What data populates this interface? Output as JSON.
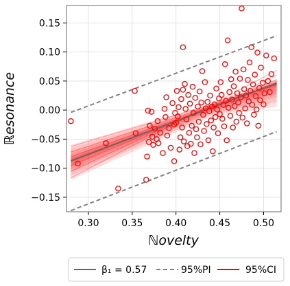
{
  "chart_data": {
    "type": "scatter",
    "xlabel": "ℕovelty",
    "ylabel": "ℝesonance",
    "xlim": [
      0.275,
      0.52
    ],
    "ylim": [
      -0.175,
      0.18
    ],
    "xticks": [
      0.3,
      0.35,
      0.4,
      0.45,
      0.5
    ],
    "xtick_labels": [
      "0.30",
      "0.35",
      "0.40",
      "0.45",
      "0.50"
    ],
    "yticks": [
      -0.15,
      -0.1,
      -0.05,
      0.0,
      0.05,
      0.1,
      0.15
    ],
    "ytick_labels": [
      "−0.15",
      "−0.10",
      "−0.05",
      "0.00",
      "0.05",
      "0.10",
      "0.15"
    ],
    "grid": true,
    "legend_position": "bottom-outside",
    "colors": {
      "points": "#ff0000",
      "fit": "#666666",
      "ci": "#ff0000",
      "pi": "#808080"
    },
    "regression": {
      "label": "β₁ = 0.57",
      "slope": 0.57,
      "intercept": -0.247,
      "x_range": [
        0.28,
        0.515
      ]
    },
    "prediction_interval": {
      "label": "95%PI",
      "upper": [
        [
          0.28,
          -0.004
        ],
        [
          0.515,
          0.128
        ]
      ],
      "lower": [
        [
          0.28,
          -0.173
        ],
        [
          0.515,
          -0.037
        ]
      ]
    },
    "confidence_interval": {
      "label": "95%CI",
      "upper": [
        [
          0.28,
          -0.06
        ],
        [
          0.44,
          0.011
        ],
        [
          0.515,
          0.053
        ]
      ],
      "lower": [
        [
          0.28,
          -0.12
        ],
        [
          0.44,
          -0.011
        ],
        [
          0.515,
          0.006
        ]
      ]
    },
    "points": [
      {
        "x": 0.28,
        "y": -0.019
      },
      {
        "x": 0.288,
        "y": -0.092
      },
      {
        "x": 0.32,
        "y": -0.057
      },
      {
        "x": 0.334,
        "y": -0.135
      },
      {
        "x": 0.353,
        "y": 0.033
      },
      {
        "x": 0.354,
        "y": -0.04
      },
      {
        "x": 0.366,
        "y": -0.12
      },
      {
        "x": 0.367,
        "y": -0.08
      },
      {
        "x": 0.368,
        "y": -0.001
      },
      {
        "x": 0.369,
        "y": -0.055
      },
      {
        "x": 0.37,
        "y": -0.027
      },
      {
        "x": 0.372,
        "y": -0.003
      },
      {
        "x": 0.373,
        "y": -0.046
      },
      {
        "x": 0.374,
        "y": -0.06
      },
      {
        "x": 0.376,
        "y": -0.032
      },
      {
        "x": 0.378,
        "y": -0.05
      },
      {
        "x": 0.379,
        "y": -0.019
      },
      {
        "x": 0.38,
        "y": -0.057
      },
      {
        "x": 0.382,
        "y": -0.039
      },
      {
        "x": 0.385,
        "y": -0.074
      },
      {
        "x": 0.387,
        "y": 0.002
      },
      {
        "x": 0.388,
        "y": -0.012
      },
      {
        "x": 0.389,
        "y": 0.022
      },
      {
        "x": 0.39,
        "y": -0.044
      },
      {
        "x": 0.392,
        "y": -0.031
      },
      {
        "x": 0.394,
        "y": -0.065
      },
      {
        "x": 0.396,
        "y": 0.012
      },
      {
        "x": 0.398,
        "y": -0.025
      },
      {
        "x": 0.398,
        "y": -0.088
      },
      {
        "x": 0.399,
        "y": -0.005
      },
      {
        "x": 0.4,
        "y": -0.022
      },
      {
        "x": 0.401,
        "y": 0.033
      },
      {
        "x": 0.402,
        "y": -0.011
      },
      {
        "x": 0.403,
        "y": 0.005
      },
      {
        "x": 0.404,
        "y": -0.068
      },
      {
        "x": 0.405,
        "y": -0.047
      },
      {
        "x": 0.406,
        "y": 0.019
      },
      {
        "x": 0.407,
        "y": -0.03
      },
      {
        "x": 0.408,
        "y": 0.035
      },
      {
        "x": 0.408,
        "y": 0.108
      },
      {
        "x": 0.409,
        "y": -0.054
      },
      {
        "x": 0.41,
        "y": 0.045
      },
      {
        "x": 0.411,
        "y": 0.002
      },
      {
        "x": 0.412,
        "y": -0.016
      },
      {
        "x": 0.413,
        "y": -0.062
      },
      {
        "x": 0.414,
        "y": 0.026
      },
      {
        "x": 0.415,
        "y": -0.039
      },
      {
        "x": 0.416,
        "y": 0.011
      },
      {
        "x": 0.417,
        "y": -0.058
      },
      {
        "x": 0.418,
        "y": -0.027
      },
      {
        "x": 0.419,
        "y": 0.04
      },
      {
        "x": 0.42,
        "y": -0.005
      },
      {
        "x": 0.421,
        "y": -0.074
      },
      {
        "x": 0.422,
        "y": 0.021
      },
      {
        "x": 0.423,
        "y": -0.033
      },
      {
        "x": 0.424,
        "y": -0.047
      },
      {
        "x": 0.425,
        "y": 0.006
      },
      {
        "x": 0.426,
        "y": -0.02
      },
      {
        "x": 0.427,
        "y": 0.032
      },
      {
        "x": 0.428,
        "y": -0.059
      },
      {
        "x": 0.429,
        "y": 0.013
      },
      {
        "x": 0.43,
        "y": 0.067
      },
      {
        "x": 0.431,
        "y": -0.008
      },
      {
        "x": 0.432,
        "y": -0.036
      },
      {
        "x": 0.433,
        "y": 0.048
      },
      {
        "x": 0.434,
        "y": 0.003
      },
      {
        "x": 0.435,
        "y": -0.024
      },
      {
        "x": 0.436,
        "y": 0.014
      },
      {
        "x": 0.437,
        "y": -0.052
      },
      {
        "x": 0.438,
        "y": -0.002
      },
      {
        "x": 0.439,
        "y": 0.025
      },
      {
        "x": 0.44,
        "y": -0.018
      },
      {
        "x": 0.441,
        "y": 0.006
      },
      {
        "x": 0.442,
        "y": -0.071
      },
      {
        "x": 0.443,
        "y": -0.03
      },
      {
        "x": 0.444,
        "y": 0.01
      },
      {
        "x": 0.445,
        "y": -0.012
      },
      {
        "x": 0.446,
        "y": 0.037
      },
      {
        "x": 0.447,
        "y": 0.001
      },
      {
        "x": 0.448,
        "y": -0.04
      },
      {
        "x": 0.449,
        "y": 0.02
      },
      {
        "x": 0.45,
        "y": -0.007
      },
      {
        "x": 0.451,
        "y": 0.048
      },
      {
        "x": 0.452,
        "y": 0.026
      },
      {
        "x": 0.453,
        "y": -0.015
      },
      {
        "x": 0.454,
        "y": 0.009
      },
      {
        "x": 0.455,
        "y": -0.028
      },
      {
        "x": 0.456,
        "y": 0.079
      },
      {
        "x": 0.457,
        "y": 0.016
      },
      {
        "x": 0.458,
        "y": -0.052
      },
      {
        "x": 0.459,
        "y": 0.12
      },
      {
        "x": 0.46,
        "y": 0.004
      },
      {
        "x": 0.461,
        "y": 0.031
      },
      {
        "x": 0.462,
        "y": -0.01
      },
      {
        "x": 0.463,
        "y": 0.053
      },
      {
        "x": 0.464,
        "y": 0.018
      },
      {
        "x": 0.465,
        "y": -0.03
      },
      {
        "x": 0.466,
        "y": 0.041
      },
      {
        "x": 0.467,
        "y": 0.007
      },
      {
        "x": 0.468,
        "y": 0.066
      },
      {
        "x": 0.469,
        "y": -0.02
      },
      {
        "x": 0.47,
        "y": 0.029
      },
      {
        "x": 0.471,
        "y": 0.013
      },
      {
        "x": 0.472,
        "y": -0.005
      },
      {
        "x": 0.473,
        "y": 0.054
      },
      {
        "x": 0.474,
        "y": 0.022
      },
      {
        "x": 0.475,
        "y": 0.175
      },
      {
        "x": 0.476,
        "y": -0.013
      },
      {
        "x": 0.477,
        "y": 0.07
      },
      {
        "x": 0.478,
        "y": 0.036
      },
      {
        "x": 0.479,
        "y": 0.003
      },
      {
        "x": 0.48,
        "y": 0.025
      },
      {
        "x": 0.481,
        "y": -0.023
      },
      {
        "x": 0.482,
        "y": 0.052
      },
      {
        "x": 0.483,
        "y": 0.015
      },
      {
        "x": 0.484,
        "y": 0.082
      },
      {
        "x": 0.485,
        "y": 0.033
      },
      {
        "x": 0.486,
        "y": 0.108
      },
      {
        "x": 0.487,
        "y": 0.009
      },
      {
        "x": 0.488,
        "y": 0.044
      },
      {
        "x": 0.489,
        "y": -0.008
      },
      {
        "x": 0.49,
        "y": 0.061
      },
      {
        "x": 0.491,
        "y": 0.024
      },
      {
        "x": 0.492,
        "y": 0.001
      },
      {
        "x": 0.493,
        "y": 0.099
      },
      {
        "x": 0.494,
        "y": -0.027
      },
      {
        "x": 0.495,
        "y": 0.038
      },
      {
        "x": 0.496,
        "y": 0.017
      },
      {
        "x": 0.497,
        "y": 0.073
      },
      {
        "x": 0.499,
        "y": 0.047
      },
      {
        "x": 0.5,
        "y": 0.01
      },
      {
        "x": 0.501,
        "y": 0.029
      },
      {
        "x": 0.503,
        "y": 0.094
      },
      {
        "x": 0.505,
        "y": 0.05
      },
      {
        "x": 0.507,
        "y": 0.031
      },
      {
        "x": 0.509,
        "y": 0.062
      },
      {
        "x": 0.512,
        "y": 0.089
      }
    ]
  }
}
